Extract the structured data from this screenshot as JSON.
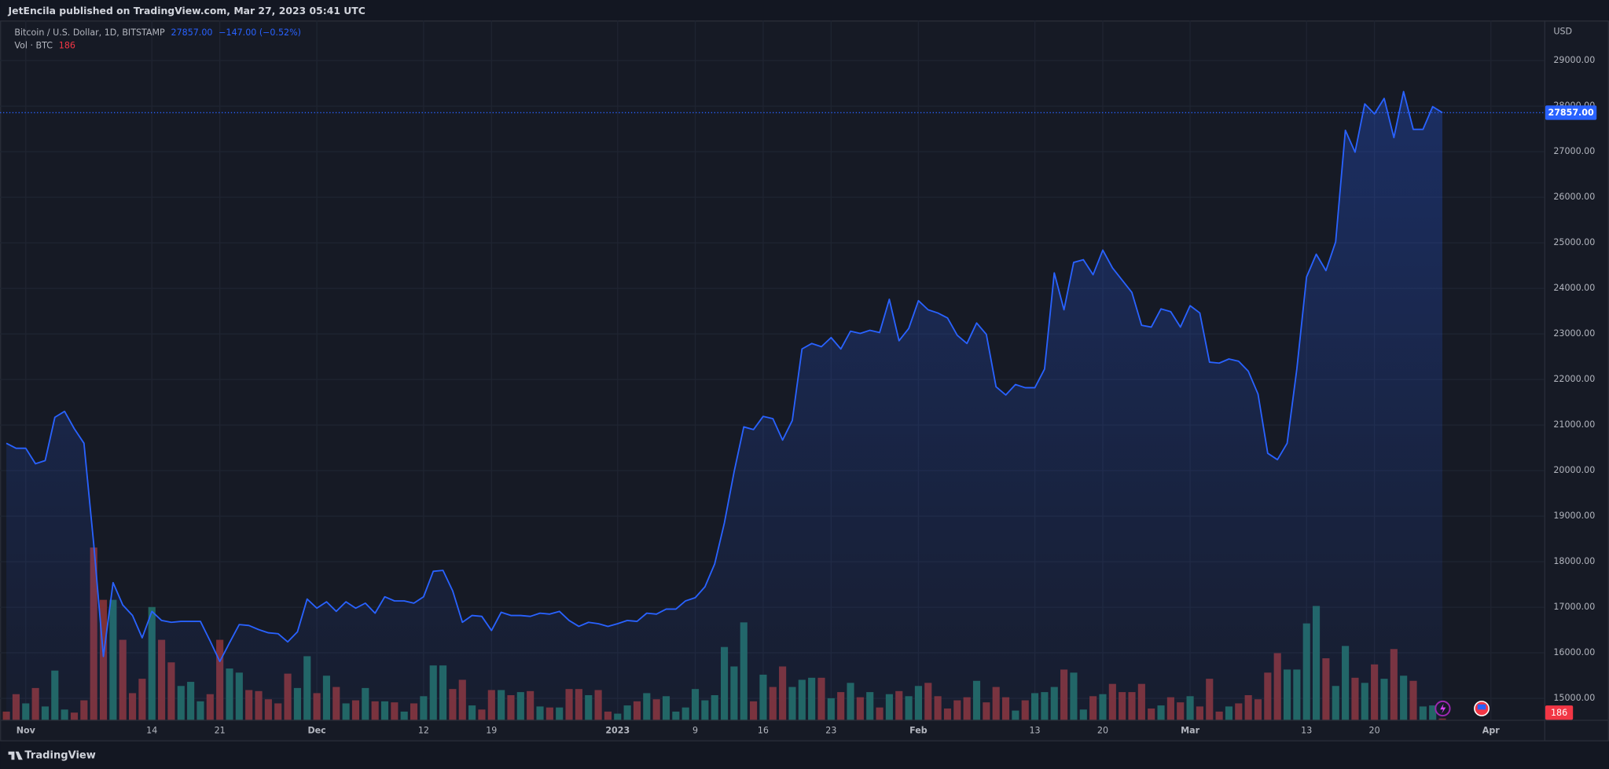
{
  "header": {
    "publisher": "JetEncila published on TradingView.com, Mar 27, 2023 05:41 UTC"
  },
  "chart_data": {
    "type": "line",
    "currency": "USD",
    "grid": true,
    "xlim": [
      -0.645,
      158.5
    ],
    "xticks": [
      {
        "value": 2,
        "label": "Nov"
      },
      {
        "value": 15,
        "label": "14"
      },
      {
        "value": 22,
        "label": "21"
      },
      {
        "value": 32,
        "label": "Dec"
      },
      {
        "value": 43,
        "label": "12"
      },
      {
        "value": 50,
        "label": "19"
      },
      {
        "value": 63,
        "label": "2023"
      },
      {
        "value": 71,
        "label": "9"
      },
      {
        "value": 78,
        "label": "16"
      },
      {
        "value": 85,
        "label": "23"
      },
      {
        "value": 94,
        "label": "Feb"
      },
      {
        "value": 106,
        "label": "13"
      },
      {
        "value": 113,
        "label": "20"
      },
      {
        "value": 122,
        "label": "Mar"
      },
      {
        "value": 134,
        "label": "13"
      },
      {
        "value": 141,
        "label": "20"
      },
      {
        "value": 153,
        "label": "Apr"
      }
    ],
    "ylim": [
      14530,
      29880
    ],
    "yticks": [
      {
        "value": 15000,
        "label": "15000.00"
      },
      {
        "value": 16000,
        "label": "16000.00"
      },
      {
        "value": 17000,
        "label": "17000.00"
      },
      {
        "value": 18000,
        "label": "18000.00"
      },
      {
        "value": 19000,
        "label": "19000.00"
      },
      {
        "value": 20000,
        "label": "20000.00"
      },
      {
        "value": 21000,
        "label": "21000.00"
      },
      {
        "value": 22000,
        "label": "22000.00"
      },
      {
        "value": 23000,
        "label": "23000.00"
      },
      {
        "value": 24000,
        "label": "24000.00"
      },
      {
        "value": 25000,
        "label": "25000.00"
      },
      {
        "value": 26000,
        "label": "26000.00"
      },
      {
        "value": 27000,
        "label": "27000.00"
      },
      {
        "value": 28000,
        "label": "28000.00"
      },
      {
        "value": 29000,
        "label": "29000.00"
      }
    ],
    "y2lim": [
      0,
      102300
    ],
    "series": [
      {
        "name": "Bitcoin / U.S. Dollar, 1D, BITSTAMP",
        "color": "#2962ff",
        "last_label": "27857.00",
        "change_label": "−147.00 (−0.52%)",
        "values": [
          20600,
          20490,
          20490,
          20150,
          20220,
          21170,
          21300,
          20920,
          20600,
          18400,
          15920,
          17540,
          17050,
          16820,
          16330,
          16910,
          16710,
          16670,
          16690,
          16690,
          16690,
          16260,
          15810,
          16220,
          16620,
          16600,
          16510,
          16440,
          16420,
          16240,
          16460,
          17180,
          16980,
          17120,
          16910,
          17120,
          16980,
          17090,
          16870,
          17230,
          17140,
          17140,
          17090,
          17230,
          17790,
          17810,
          17360,
          16670,
          16820,
          16800,
          16490,
          16890,
          16820,
          16820,
          16800,
          16870,
          16850,
          16910,
          16710,
          16580,
          16670,
          16640,
          16580,
          16640,
          16710,
          16690,
          16870,
          16850,
          16960,
          16960,
          17140,
          17210,
          17450,
          17950,
          18850,
          19970,
          20960,
          20900,
          21190,
          21140,
          20670,
          21100,
          22670,
          22790,
          22720,
          22920,
          22670,
          23060,
          23010,
          23080,
          23030,
          23760,
          22850,
          23120,
          23730,
          23530,
          23460,
          23350,
          22970,
          22790,
          23240,
          22990,
          21840,
          21660,
          21890,
          21820,
          21820,
          22230,
          24340,
          23530,
          24570,
          24630,
          24300,
          24840,
          24450,
          24180,
          23910,
          23190,
          23150,
          23550,
          23490,
          23150,
          23620,
          23460,
          22380,
          22360,
          22450,
          22400,
          22180,
          21680,
          20380,
          20240,
          20600,
          22230,
          24250,
          24750,
          24390,
          25020,
          27470,
          26990,
          28050,
          27830,
          28170,
          27310,
          28320,
          27490,
          27490,
          27990,
          27857
        ]
      },
      {
        "name": "Vol · BTC",
        "type": "bar",
        "axis": "y2",
        "up_color": "#22665f",
        "down_color": "#7d3136",
        "value_color": "#f23645",
        "values": [
          1200,
          3750,
          2400,
          4650,
          1950,
          7200,
          1500,
          1050,
          2850,
          25200,
          17550,
          17550,
          11700,
          3900,
          6000,
          16500,
          11700,
          8400,
          4950,
          5550,
          2700,
          3750,
          11700,
          7500,
          6900,
          4350,
          4200,
          3000,
          2400,
          6750,
          4650,
          9300,
          3900,
          6450,
          4800,
          2400,
          2850,
          4650,
          2700,
          2700,
          2550,
          1200,
          2400,
          3450,
          7950,
          7950,
          4500,
          5850,
          2100,
          1500,
          4350,
          4350,
          3600,
          4050,
          4200,
          1950,
          1800,
          1800,
          4500,
          4500,
          3600,
          4350,
          1200,
          900,
          2100,
          2700,
          3900,
          3000,
          3450,
          1200,
          1800,
          4500,
          2850,
          3600,
          10650,
          7800,
          14250,
          2700,
          6600,
          4800,
          7800,
          4800,
          5850,
          6150,
          6150,
          3150,
          4050,
          5400,
          3300,
          4050,
          1800,
          3750,
          4200,
          3450,
          4950,
          5400,
          3450,
          1650,
          2850,
          3300,
          5700,
          2550,
          4800,
          3300,
          1350,
          2850,
          3900,
          4050,
          4800,
          7350,
          6900,
          1500,
          3450,
          3750,
          5250,
          4050,
          4050,
          5250,
          1650,
          2100,
          3300,
          2550,
          3450,
          1950,
          6000,
          1200,
          1950,
          2400,
          3600,
          3000,
          6900,
          9750,
          7350,
          7350,
          14100,
          16650,
          9000,
          4950,
          10800,
          6150,
          5400,
          8100,
          6000,
          10350,
          6450,
          5700,
          1950,
          2100,
          186
        ]
      }
    ]
  },
  "footer": {
    "brand": "TradingView"
  }
}
